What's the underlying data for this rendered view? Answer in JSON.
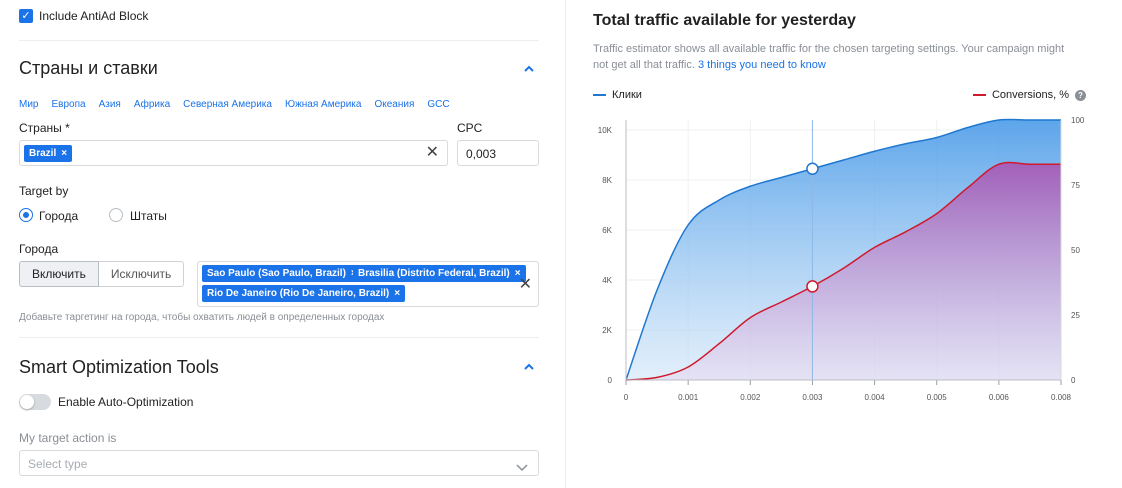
{
  "include_antiad": {
    "label": "Include AntiAd Block",
    "checked": true
  },
  "countries_section": {
    "title": "Страны и ставки",
    "regions": [
      "Мир",
      "Европа",
      "Азия",
      "Африка",
      "Северная Америка",
      "Южная Америка",
      "Океания",
      "GCC"
    ],
    "countries_label": "Страны *",
    "selected_country": "Brazil",
    "cpc_label": "CPC",
    "cpc_value": "0,003",
    "target_by_label": "Target by",
    "target_options": [
      {
        "label": "Города",
        "selected": true
      },
      {
        "label": "Штаты",
        "selected": false
      }
    ],
    "cities_label": "Города",
    "include_label": "Включить",
    "exclude_label": "Исключить",
    "cities": [
      "Sao Paulo (Sao Paulo, Brazil)",
      "Brasilia (Distrito Federal, Brazil)",
      "Rio De Janeiro (Rio De Janeiro, Brazil)"
    ],
    "cities_hint": "Добавьте таргетинг на города, чтобы охватить людей в определенных городах"
  },
  "smart_section": {
    "title": "Smart Optimization Tools",
    "auto_opt_label": "Enable Auto-Optimization",
    "auto_opt_on": false,
    "target_action_label": "My target action is",
    "target_action_placeholder": "Select type"
  },
  "traffic": {
    "title": "Total traffic available for yesterday",
    "description": "Traffic estimator shows all available traffic for the chosen targeting settings. Your campaign might not get all that traffic. ",
    "link_text": "3 things you need to know",
    "legend_left": "Клики",
    "legend_right": "Conversions, %",
    "help_icon": "?"
  },
  "colors": {
    "accent": "#1a73e8",
    "clicks_line": "#1f77d0",
    "conversions_line": "#d0192b"
  },
  "chart_data": {
    "type": "area",
    "x": [
      0,
      0.0005,
      0.001,
      0.0015,
      0.002,
      0.0025,
      0.003,
      0.0035,
      0.004,
      0.0045,
      0.005,
      0.0055,
      0.006,
      0.0065,
      0.007
    ],
    "x_ticks": [
      "0",
      "0.001",
      "0.002",
      "0.003",
      "0.004",
      "0.005",
      "0.006",
      "0.008"
    ],
    "xlim": [
      0,
      0.007
    ],
    "series": [
      {
        "name": "Клики",
        "axis": "left",
        "values": [
          0,
          3600,
          6200,
          7200,
          7750,
          8100,
          8450,
          8800,
          9150,
          9450,
          9700,
          10100,
          10400,
          10400,
          10400
        ]
      },
      {
        "name": "Conversions, %",
        "axis": "right",
        "values": [
          0,
          1,
          5,
          14,
          24,
          30,
          36,
          43,
          51,
          57,
          64,
          74,
          83,
          83,
          83
        ]
      }
    ],
    "left_ticks": [
      "0",
      "2K",
      "4K",
      "6K",
      "8K",
      "10K"
    ],
    "left_ylim": [
      0,
      10400
    ],
    "right_ticks": [
      "0",
      "25",
      "50",
      "75",
      "100"
    ],
    "right_ylim": [
      0,
      100
    ],
    "cursor_x": 0.003,
    "cursor_values": {
      "clicks": 8450,
      "conversions": 36
    },
    "grid": true
  }
}
